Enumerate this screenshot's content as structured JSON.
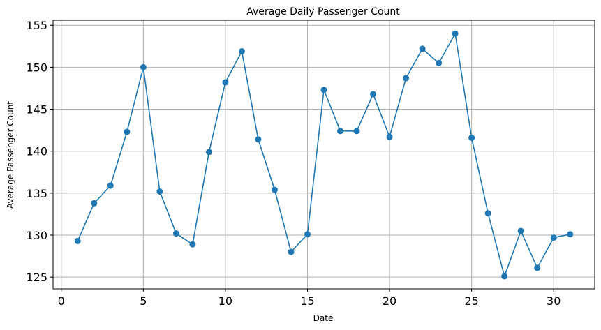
{
  "chart_data": {
    "type": "line",
    "title": "Average Daily Passenger Count",
    "xlabel": "Date",
    "ylabel": "Average Passenger Count",
    "xlim": [
      -0.5,
      32.5
    ],
    "ylim": [
      123.6,
      155.6
    ],
    "xticks": [
      0,
      5,
      10,
      15,
      20,
      25,
      30
    ],
    "yticks": [
      125,
      130,
      135,
      140,
      145,
      150,
      155
    ],
    "grid": true,
    "series": [
      {
        "color": "#1f77b4",
        "marker": "circle",
        "x": [
          1,
          2,
          3,
          4,
          5,
          6,
          7,
          8,
          9,
          10,
          11,
          12,
          13,
          14,
          15,
          16,
          17,
          18,
          19,
          20,
          21,
          22,
          23,
          24,
          25,
          26,
          27,
          28,
          29,
          30,
          31
        ],
        "y": [
          129.3,
          133.8,
          135.9,
          142.3,
          150.0,
          135.2,
          130.2,
          128.9,
          139.9,
          148.2,
          151.9,
          141.4,
          135.4,
          128.0,
          130.1,
          147.3,
          142.4,
          142.4,
          146.8,
          141.7,
          148.7,
          152.2,
          150.5,
          154.0,
          141.6,
          132.6,
          125.1,
          130.5,
          126.1,
          129.7,
          130.1
        ]
      }
    ]
  }
}
